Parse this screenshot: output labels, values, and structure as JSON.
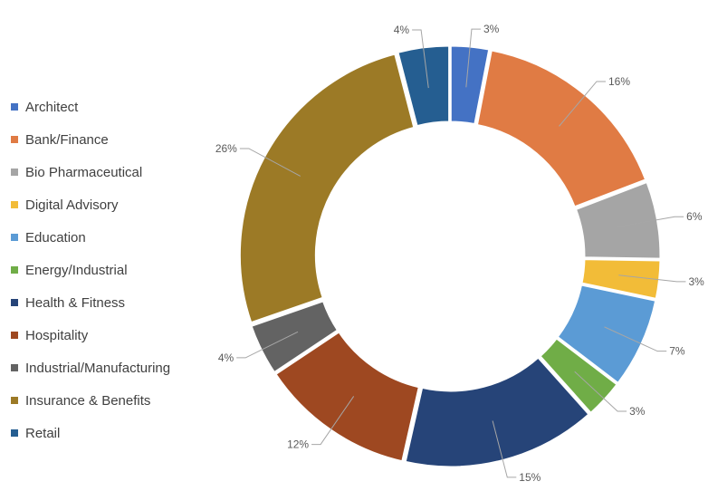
{
  "chart_data": {
    "type": "pie",
    "variant": "donut",
    "title": "",
    "legend_position": "left",
    "categories": [
      "Architect",
      "Bank/Finance",
      "Bio Pharmaceutical",
      "Digital Advisory",
      "Education",
      "Energy/Industrial",
      "Health & Fitness",
      "Hospitality",
      "Industrial/Manufacturing",
      "Insurance & Benefits",
      "Retail"
    ],
    "values": [
      3,
      16,
      6,
      3,
      7,
      3,
      15,
      12,
      4,
      26,
      4
    ],
    "labels": [
      "3%",
      "16%",
      "6%",
      "3%",
      "7%",
      "3%",
      "15%",
      "12%",
      "4%",
      "26%",
      "4%"
    ],
    "colors": [
      "#4472c4",
      "#e07b44",
      "#a5a5a5",
      "#f2bc38",
      "#5b9bd5",
      "#70ad47",
      "#264478",
      "#9e4821",
      "#636363",
      "#9c7a26",
      "#255e91"
    ]
  }
}
